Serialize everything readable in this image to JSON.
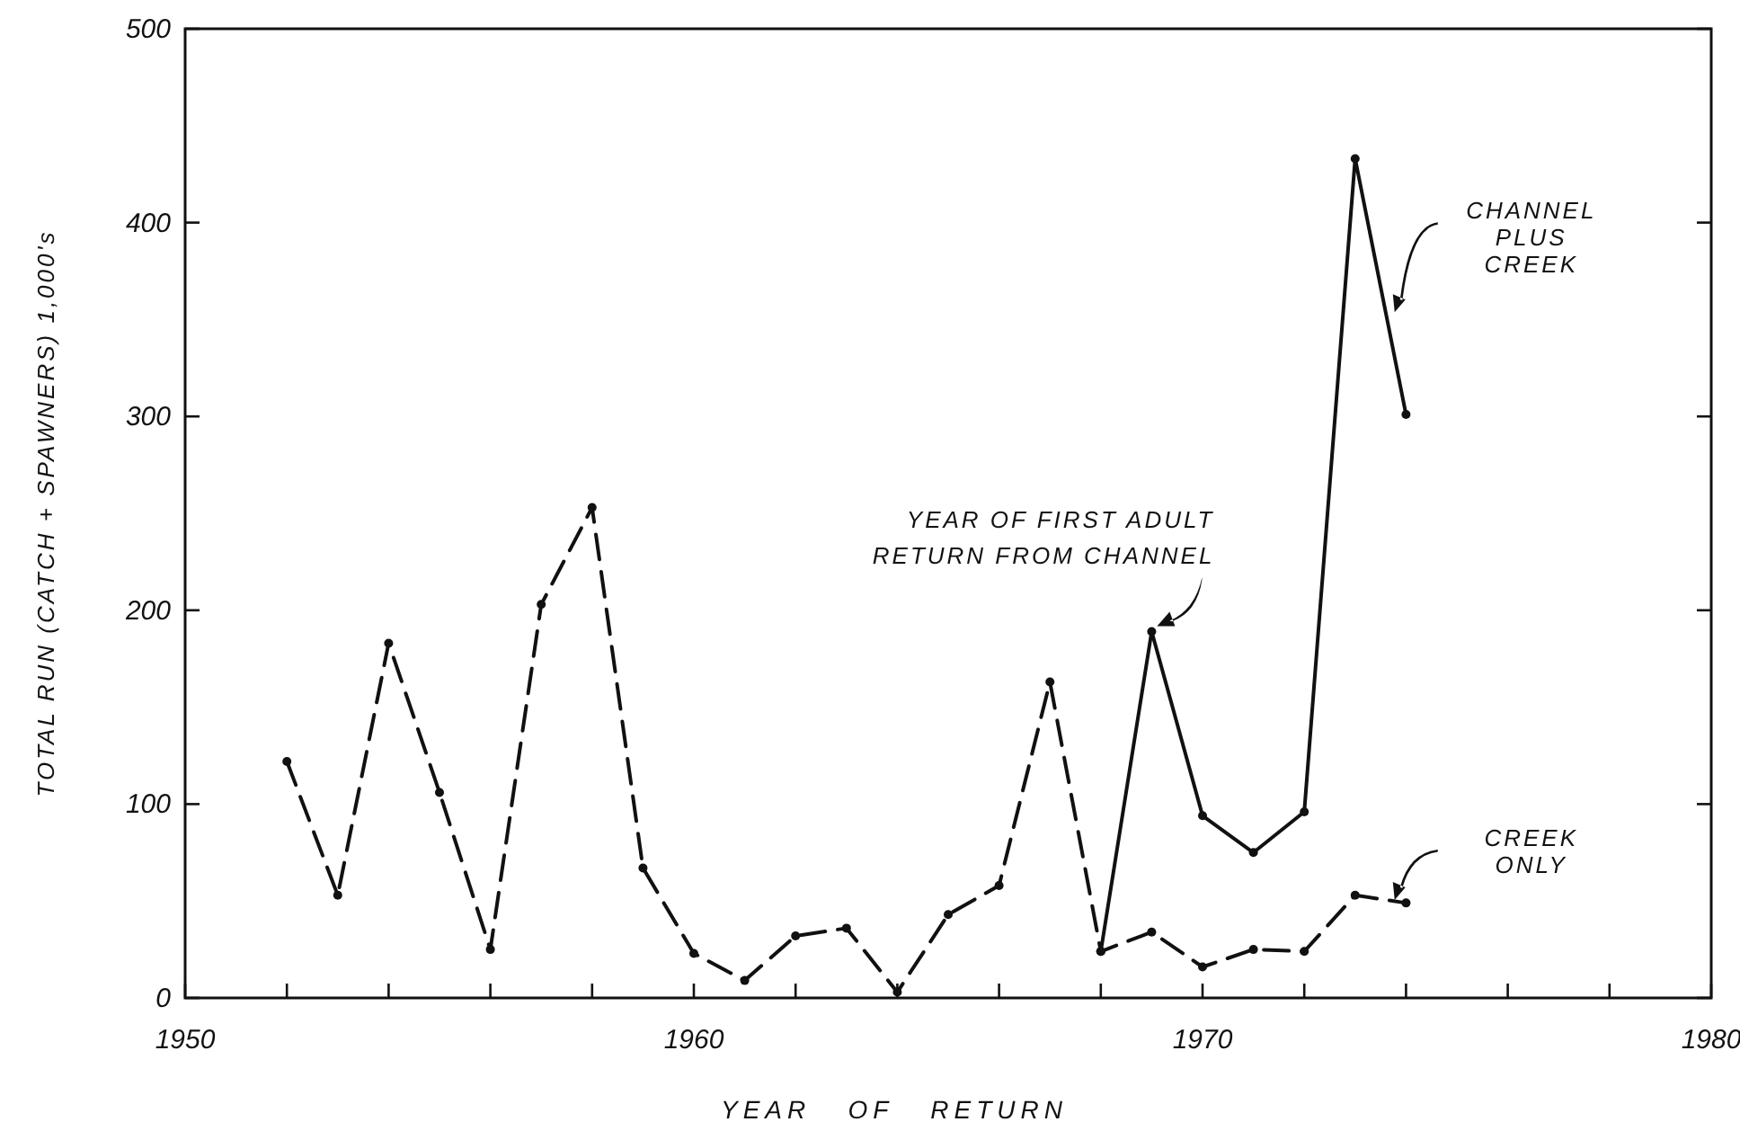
{
  "chart_data": {
    "type": "line",
    "xlabel": "YEAR   OF   RETURN",
    "ylabel": "TOTAL RUN (CATCH + SPAWNERS) 1,000's",
    "xlim": [
      1950,
      1980
    ],
    "ylim": [
      0,
      500
    ],
    "xticks": [
      1950,
      {
        "value": 1952,
        "label": null
      },
      {
        "value": 1954,
        "label": null
      },
      {
        "value": 1956,
        "label": null
      },
      {
        "value": 1958,
        "label": null
      },
      1960,
      {
        "value": 1962,
        "label": null
      },
      {
        "value": 1964,
        "label": null
      },
      {
        "value": 1966,
        "label": null
      },
      {
        "value": 1968,
        "label": null
      },
      1970,
      {
        "value": 1972,
        "label": null
      },
      {
        "value": 1974,
        "label": null
      },
      {
        "value": 1976,
        "label": null
      },
      {
        "value": 1978,
        "label": null
      },
      1980
    ],
    "yticks": [
      0,
      100,
      200,
      300,
      400,
      500
    ],
    "grid": false,
    "marker": "circle",
    "series": [
      {
        "name": "CREEK ONLY",
        "color": "#111111",
        "line_style": "dashed",
        "x": [
          1952,
          1953,
          1954,
          1955,
          1956,
          1957,
          1958,
          1959,
          1960,
          1961,
          1962,
          1963,
          1964,
          1965,
          1966,
          1967,
          1968,
          1969,
          1970,
          1971,
          1972,
          1973,
          1974
        ],
        "values": [
          122,
          53,
          183,
          106,
          25,
          203,
          253,
          67,
          23,
          9,
          32,
          36,
          3,
          43,
          58,
          163,
          24,
          34,
          16,
          25,
          24,
          53,
          49
        ]
      },
      {
        "name": "CHANNEL PLUS CREEK",
        "color": "#111111",
        "line_style": "solid",
        "x": [
          1968,
          1969,
          1970,
          1971,
          1972,
          1973,
          1974
        ],
        "values": [
          24,
          189,
          94,
          75,
          96,
          433,
          301
        ]
      }
    ],
    "annotations": [
      {
        "text": "YEAR OF FIRST ADULT RETURN FROM CHANNEL",
        "x": 1969,
        "y": 189
      }
    ]
  }
}
